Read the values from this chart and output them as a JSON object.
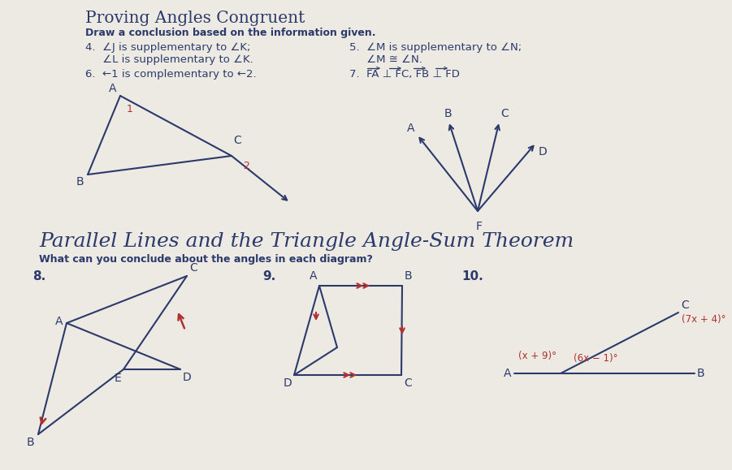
{
  "bg_color": "#edeae3",
  "tc": "#2b3a6b",
  "rc": "#b03030",
  "title1": "Proving Angles Congruent",
  "subtitle1": "Draw a conclusion based on the information given.",
  "p4a": "4.  ∠J is supplementary to ∠K;",
  "p4b": "     ∠L is supplementary to ∠K.",
  "p5a": "5.  ∠M is supplementary to ∠N;",
  "p5b": "     ∠M ≅ ∠N.",
  "p6": "6.  ←1 is complementary to ←2.",
  "p7": "7.  FA ⊥ FC, FB ⊥ FD",
  "title2": "Parallel Lines and the Triangle Angle-Sum Theorem",
  "subtitle2": "What can you conclude about the angles in each diagram?",
  "lbl8": "8.",
  "lbl9": "9.",
  "lbl10": "10.",
  "angle10a": "(x + 9)°",
  "angle10b": "(6x − 1)°",
  "angle10c": "(7x + 4)°"
}
